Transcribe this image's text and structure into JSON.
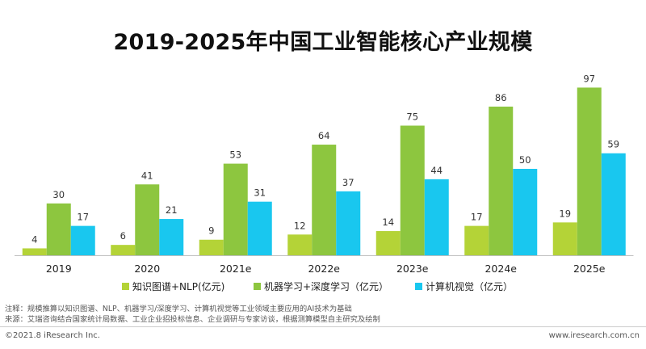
{
  "chart_data": {
    "type": "bar",
    "title": "2019-2025年中国工业智能核心产业规模",
    "categories": [
      "2019",
      "2020",
      "2021e",
      "2022e",
      "2023e",
      "2024e",
      "2025e"
    ],
    "series": [
      {
        "name": "知识图谱+NLP(亿元)",
        "color": "#b4d337",
        "values": [
          4,
          6,
          9,
          12,
          14,
          17,
          19
        ]
      },
      {
        "name": "机器学习+深度学习（亿元）",
        "color": "#8dc63f",
        "values": [
          30,
          41,
          53,
          64,
          75,
          86,
          97
        ]
      },
      {
        "name": "计算机视觉（亿元）",
        "color": "#19c7ef",
        "values": [
          17,
          21,
          31,
          37,
          44,
          50,
          59
        ]
      }
    ],
    "xlabel": "",
    "ylabel": "",
    "ylim": [
      0,
      100
    ],
    "legend_position": "bottom",
    "grid": false
  },
  "notes": {
    "line1": "注释：规模推算以知识图谱、NLP、机器学习/深度学习、计算机视觉等工业领域主要应用的AI技术为基础",
    "line2": "来源：艾瑞咨询结合国家统计局数据、工业企业招投标信息、企业调研与专家访谈，根据测算模型自主研究及绘制"
  },
  "footer": {
    "copyright": "©2021.8 iResearch Inc.",
    "website": "www.iresearch.com.cn"
  }
}
